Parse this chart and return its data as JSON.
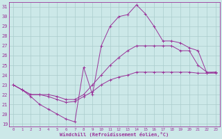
{
  "xlabel": "Windchill (Refroidissement éolien,°C)",
  "xlim": [
    -0.5,
    23.5
  ],
  "ylim": [
    18.7,
    31.5
  ],
  "yticks": [
    19,
    20,
    21,
    22,
    23,
    24,
    25,
    26,
    27,
    28,
    29,
    30,
    31
  ],
  "xticks": [
    0,
    1,
    2,
    3,
    4,
    5,
    6,
    7,
    8,
    9,
    10,
    11,
    12,
    13,
    14,
    15,
    16,
    17,
    18,
    19,
    20,
    21,
    22,
    23
  ],
  "background_color": "#cce8e8",
  "grid_color": "#aacccc",
  "line_color": "#993399",
  "line1_y": [
    23.0,
    22.5,
    21.8,
    21.0,
    20.5,
    20.0,
    19.5,
    19.2,
    24.8,
    22.0,
    27.0,
    29.0,
    30.0,
    30.2,
    31.2,
    30.3,
    29.0,
    27.5,
    27.5,
    27.3,
    26.8,
    26.5,
    24.2,
    24.3
  ],
  "line2_y": [
    23.0,
    22.5,
    22.0,
    22.0,
    22.0,
    21.8,
    21.5,
    21.5,
    22.0,
    23.0,
    24.0,
    25.0,
    25.8,
    26.5,
    27.0,
    27.0,
    27.0,
    27.0,
    27.0,
    26.5,
    26.5,
    25.0,
    24.3,
    24.3
  ],
  "line3_y": [
    23.0,
    22.5,
    22.0,
    22.0,
    21.8,
    21.5,
    21.2,
    21.3,
    21.8,
    22.3,
    23.0,
    23.5,
    23.8,
    24.0,
    24.3,
    24.3,
    24.3,
    24.3,
    24.3,
    24.3,
    24.3,
    24.2,
    24.2,
    24.2
  ]
}
